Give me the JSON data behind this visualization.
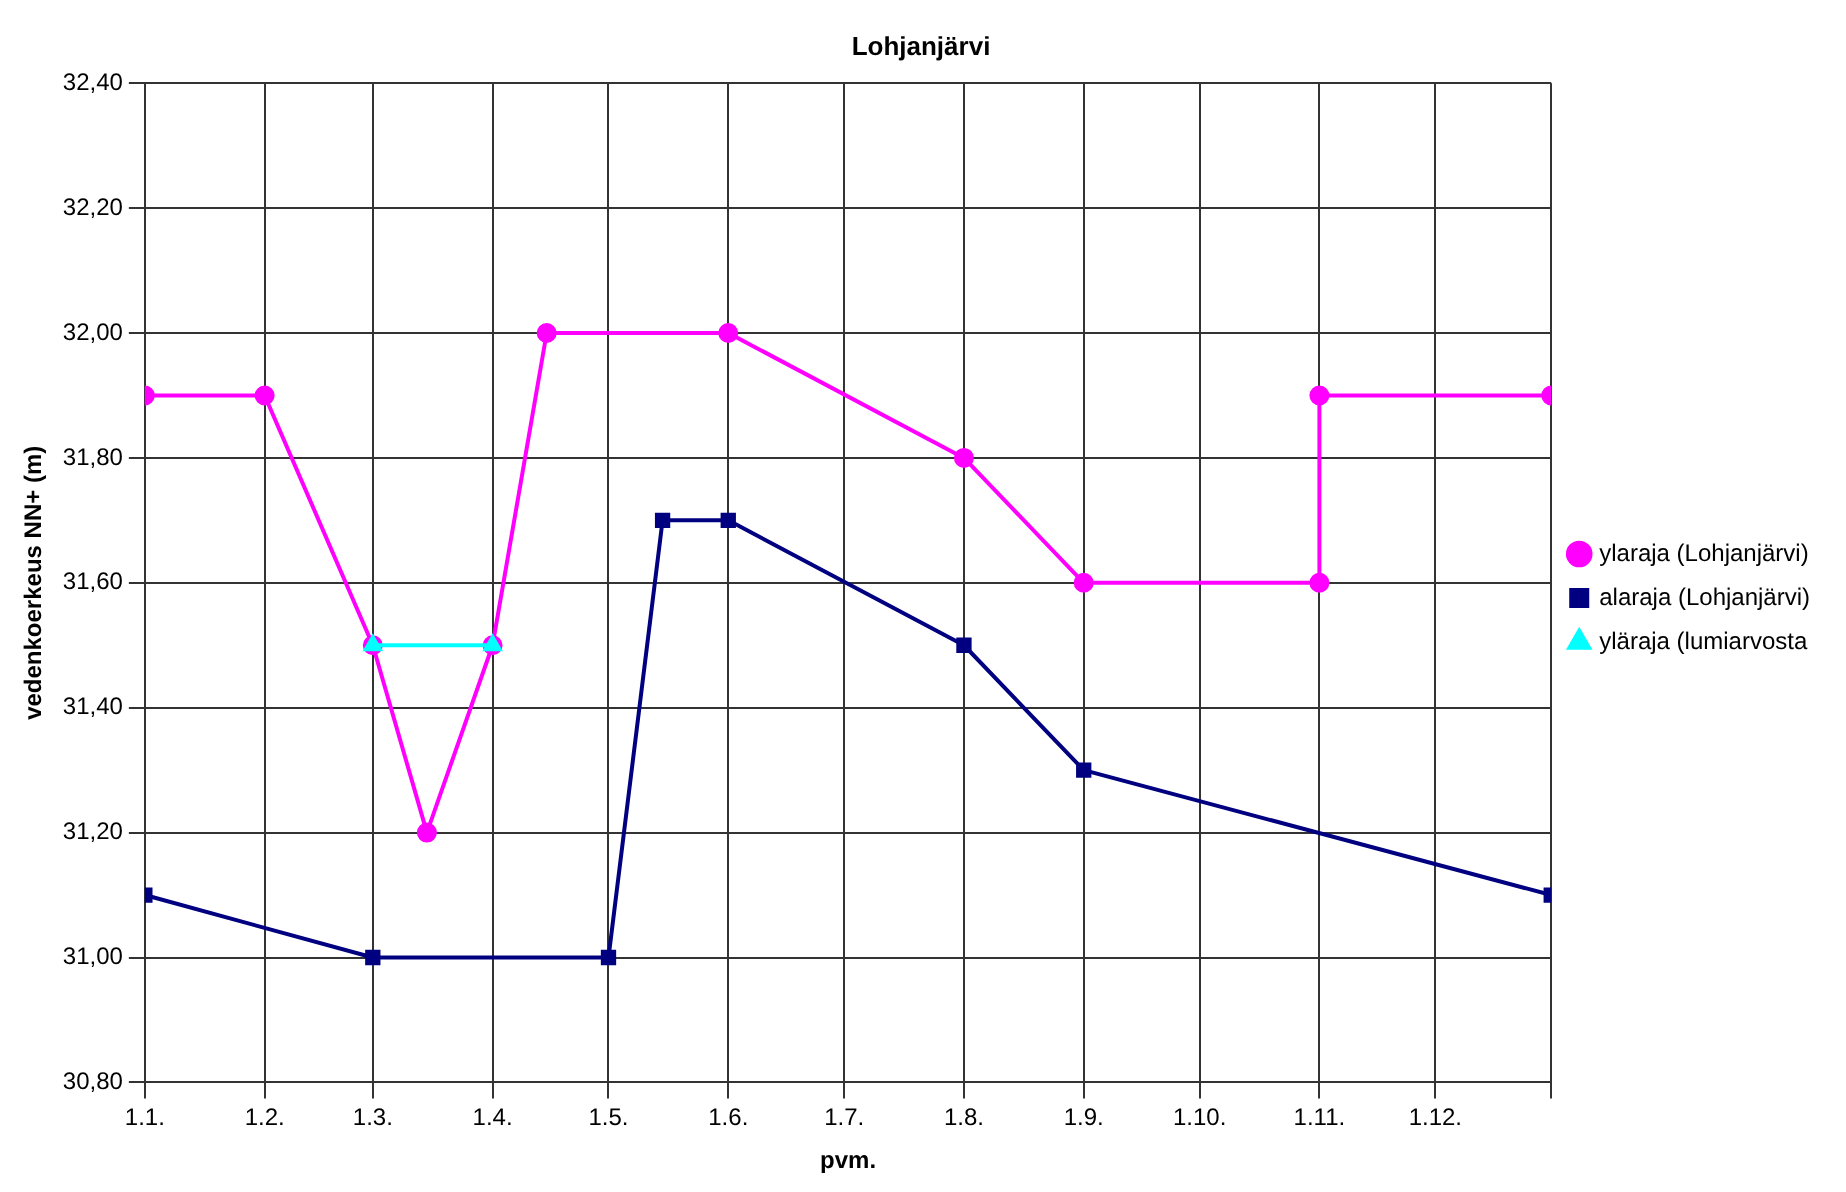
{
  "chart_data": {
    "type": "line",
    "title": "Lohjanjärvi",
    "xlabel": "pvm.",
    "ylabel": "vedenkoerkeus NN+ (m)",
    "series": [
      {
        "name": "ylaraja (Lohjanjärvi)",
        "color": "#ff00ff",
        "marker": "circle",
        "x": [
          "--01-01",
          "--02-01",
          "--03-01",
          "--03-15",
          "--04-01",
          "--04-15",
          "--06-01",
          "--08-01",
          "--09-01",
          "--11-01",
          "--11-01",
          "--12-31"
        ],
        "values": [
          31.9,
          31.9,
          31.5,
          31.2,
          31.5,
          32.0,
          32.0,
          31.8,
          31.6,
          31.6,
          31.9,
          31.9
        ]
      },
      {
        "name": "alaraja (Lohjanjärvi)",
        "color": "#000080",
        "marker": "square",
        "x": [
          "--01-01",
          "--03-01",
          "--05-01",
          "--05-15",
          "--06-01",
          "--08-01",
          "--09-01",
          "--12-31"
        ],
        "values": [
          31.1,
          31.0,
          31.0,
          31.7,
          31.7,
          31.5,
          31.3,
          31.1
        ]
      },
      {
        "name": "yläraja (lumiarvosta",
        "color": "#00ffff",
        "marker": "triangle",
        "x": [
          "--03-01",
          "--04-01"
        ],
        "values": [
          31.5,
          31.5
        ]
      }
    ],
    "xlim": [
      "--01-01",
      "--12-31"
    ],
    "xticks": [
      {
        "value": "--01-01",
        "label": "1.1."
      },
      {
        "value": "--02-01",
        "label": "1.2."
      },
      {
        "value": "--03-01",
        "label": "1.3."
      },
      {
        "value": "--04-01",
        "label": "1.4."
      },
      {
        "value": "--05-01",
        "label": "1.5."
      },
      {
        "value": "--06-01",
        "label": "1.6."
      },
      {
        "value": "--07-01",
        "label": "1.7."
      },
      {
        "value": "--08-01",
        "label": "1.8."
      },
      {
        "value": "--09-01",
        "label": "1.9."
      },
      {
        "value": "--10-01",
        "label": "1.10."
      },
      {
        "value": "--11-01",
        "label": "1.11."
      },
      {
        "value": "--12-01",
        "label": "1.12."
      },
      {
        "value": "--12-31",
        "label": null
      }
    ],
    "ylim": [
      30.8,
      32.4
    ],
    "yticks": [
      {
        "value": 30.8,
        "label": "30,80"
      },
      {
        "value": 31.0,
        "label": "31,00"
      },
      {
        "value": 31.2,
        "label": "31,20"
      },
      {
        "value": 31.4,
        "label": "31,40"
      },
      {
        "value": 31.6,
        "label": "31,60"
      },
      {
        "value": 31.8,
        "label": "31,80"
      },
      {
        "value": 32.0,
        "label": "32,00"
      },
      {
        "value": 32.2,
        "label": "32,20"
      },
      {
        "value": 32.4,
        "label": "32,40"
      }
    ],
    "grid": true,
    "legend": "right"
  }
}
